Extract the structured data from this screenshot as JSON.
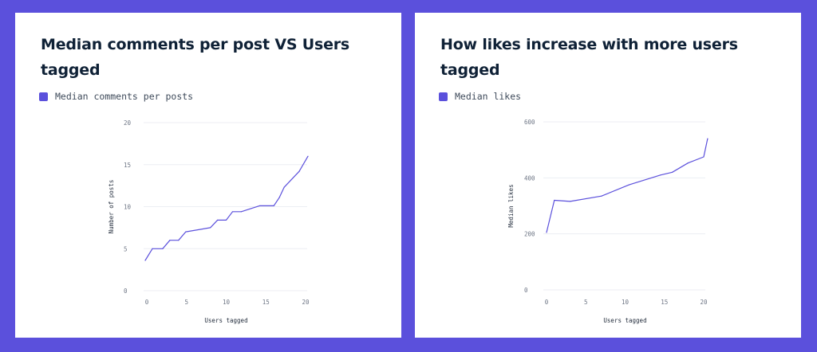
{
  "colors": {
    "background": "#5b50dc",
    "card": "#ffffff",
    "series": "#5b50dc",
    "title": "#0f2136",
    "grid": "#eceef3"
  },
  "chart_data": [
    {
      "type": "line",
      "title": "Median comments per post VS Users tagged",
      "xlabel": "Users tagged",
      "ylabel": "Number of posts",
      "xlim": [
        0,
        20
      ],
      "ylim": [
        0,
        20
      ],
      "xticks": [
        "0",
        "5",
        "10",
        "15",
        "20"
      ],
      "yticks": [
        "0",
        "5",
        "10",
        "15",
        "20"
      ],
      "grid": true,
      "legend_position": "top-left",
      "series": [
        {
          "name": "Median comments per posts",
          "x": [
            -0.2,
            0.7,
            2,
            2.9,
            4,
            4.9,
            8,
            8.9,
            10,
            10.8,
            11.9,
            14.2,
            16,
            16.7,
            17.3,
            19.2,
            20.3
          ],
          "y": [
            3.6,
            5,
            5,
            6,
            6,
            7,
            7.5,
            8.4,
            8.4,
            9.4,
            9.4,
            10.1,
            10.1,
            11.1,
            12.3,
            14.2,
            16
          ]
        }
      ]
    },
    {
      "type": "line",
      "title": "How likes increase with more users tagged",
      "xlabel": "Users tagged",
      "ylabel": "Median likes",
      "xlim": [
        0,
        20
      ],
      "ylim": [
        0,
        600
      ],
      "xticks": [
        "0",
        "5",
        "10",
        "15",
        "20"
      ],
      "yticks": [
        "0",
        "200",
        "400",
        "600"
      ],
      "grid": true,
      "legend_position": "top-left",
      "series": [
        {
          "name": "Median likes",
          "x": [
            0,
            1,
            3,
            7,
            10.5,
            14.5,
            16,
            18,
            20,
            20.5
          ],
          "y": [
            205,
            320,
            316,
            335,
            375,
            410,
            420,
            453,
            475,
            540
          ]
        }
      ]
    }
  ]
}
